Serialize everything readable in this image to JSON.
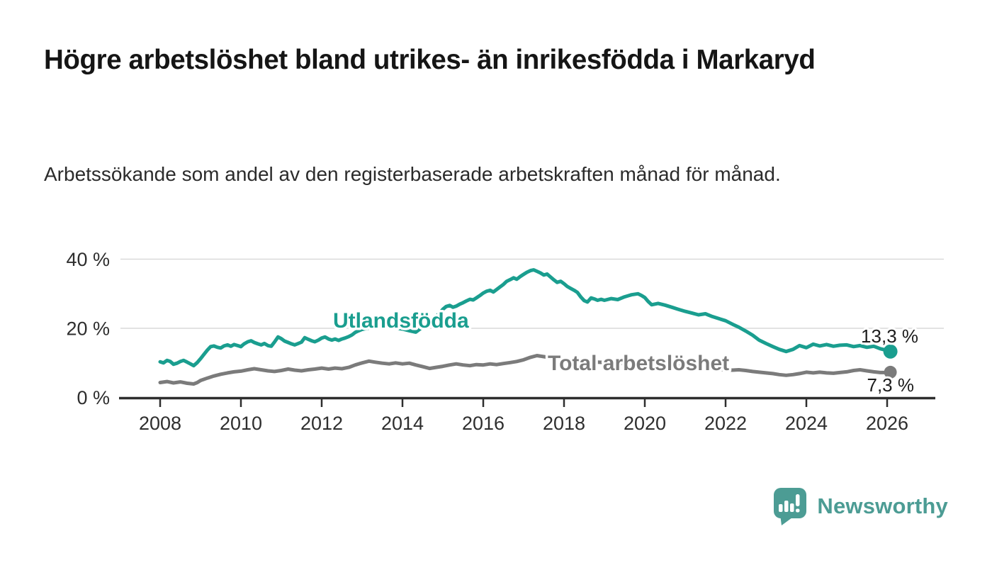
{
  "header": {
    "title": "Högre arbetslöshet bland utrikes- än inrikesfödda i Markaryd",
    "subtitle": "Arbetssökande som andel av den registerbaserade arbetskraften månad för månad."
  },
  "chart_data": {
    "type": "line",
    "title": "Högre arbetslöshet bland utrikes- än inrikesfödda i Markaryd",
    "xlabel": "",
    "ylabel": "",
    "x_unit": "year (monthly data)",
    "xlim": [
      2007.0,
      2026.9
    ],
    "ylim": [
      0,
      40
    ],
    "grid": true,
    "legend_position": "inline-labels",
    "x_axis": {
      "ticks": [
        {
          "value": 2008,
          "label": "2008"
        },
        {
          "value": 2010,
          "label": "2010"
        },
        {
          "value": 2012,
          "label": "2012"
        },
        {
          "value": 2014,
          "label": "2014"
        },
        {
          "value": 2016,
          "label": "2016"
        },
        {
          "value": 2018,
          "label": "2018"
        },
        {
          "value": 2020,
          "label": "2020"
        },
        {
          "value": 2022,
          "label": "2022"
        },
        {
          "value": 2024,
          "label": "2024"
        },
        {
          "value": 2026,
          "label": "2026"
        }
      ]
    },
    "y_axis": {
      "ticks": [
        {
          "value": 0,
          "label": "0 %"
        },
        {
          "value": 20,
          "label": "20 %"
        },
        {
          "value": 40,
          "label": "40 %"
        }
      ]
    },
    "series": [
      {
        "name": "Utlandsfödda",
        "color": "#1a9e8f",
        "end_label": "13,3 %",
        "end_value": 13.3,
        "points": [
          [
            2008.0,
            10.3
          ],
          [
            2008.08,
            10.0
          ],
          [
            2008.17,
            10.7
          ],
          [
            2008.25,
            10.4
          ],
          [
            2008.33,
            9.6
          ],
          [
            2008.42,
            9.9
          ],
          [
            2008.5,
            10.4
          ],
          [
            2008.58,
            10.7
          ],
          [
            2008.67,
            10.2
          ],
          [
            2008.75,
            9.7
          ],
          [
            2008.83,
            9.2
          ],
          [
            2008.92,
            10.1
          ],
          [
            2009.0,
            11.2
          ],
          [
            2009.08,
            12.4
          ],
          [
            2009.17,
            13.7
          ],
          [
            2009.25,
            14.7
          ],
          [
            2009.33,
            14.9
          ],
          [
            2009.42,
            14.5
          ],
          [
            2009.5,
            14.3
          ],
          [
            2009.58,
            14.9
          ],
          [
            2009.67,
            15.2
          ],
          [
            2009.75,
            14.8
          ],
          [
            2009.83,
            15.3
          ],
          [
            2009.92,
            15.0
          ],
          [
            2010.0,
            14.7
          ],
          [
            2010.08,
            15.5
          ],
          [
            2010.17,
            16.1
          ],
          [
            2010.25,
            16.4
          ],
          [
            2010.33,
            15.9
          ],
          [
            2010.42,
            15.5
          ],
          [
            2010.5,
            15.2
          ],
          [
            2010.58,
            15.6
          ],
          [
            2010.67,
            15.0
          ],
          [
            2010.75,
            14.8
          ],
          [
            2010.83,
            16.0
          ],
          [
            2010.92,
            17.5
          ],
          [
            2011.0,
            17.0
          ],
          [
            2011.08,
            16.3
          ],
          [
            2011.17,
            15.9
          ],
          [
            2011.25,
            15.5
          ],
          [
            2011.33,
            15.2
          ],
          [
            2011.42,
            15.6
          ],
          [
            2011.5,
            16.0
          ],
          [
            2011.58,
            17.3
          ],
          [
            2011.67,
            16.8
          ],
          [
            2011.75,
            16.4
          ],
          [
            2011.83,
            16.1
          ],
          [
            2011.92,
            16.6
          ],
          [
            2012.0,
            17.2
          ],
          [
            2012.08,
            17.5
          ],
          [
            2012.17,
            16.9
          ],
          [
            2012.25,
            16.6
          ],
          [
            2012.33,
            16.9
          ],
          [
            2012.42,
            16.5
          ],
          [
            2012.5,
            16.9
          ],
          [
            2012.58,
            17.2
          ],
          [
            2012.67,
            17.6
          ],
          [
            2012.75,
            18.1
          ],
          [
            2012.83,
            18.8
          ],
          [
            2012.92,
            19.3
          ],
          [
            2013.0,
            19.7
          ],
          [
            2013.17,
            20.1
          ],
          [
            2013.33,
            20.5
          ],
          [
            2013.5,
            20.7
          ],
          [
            2013.67,
            20.4
          ],
          [
            2013.83,
            20.1
          ],
          [
            2014.0,
            19.8
          ],
          [
            2014.17,
            19.3
          ],
          [
            2014.33,
            18.9
          ],
          [
            2014.5,
            20.4
          ],
          [
            2014.58,
            21.2
          ],
          [
            2014.67,
            21.9
          ],
          [
            2014.75,
            22.6
          ],
          [
            2014.83,
            23.4
          ],
          [
            2014.92,
            24.4
          ],
          [
            2015.0,
            25.5
          ],
          [
            2015.08,
            26.3
          ],
          [
            2015.17,
            26.6
          ],
          [
            2015.25,
            26.1
          ],
          [
            2015.33,
            26.4
          ],
          [
            2015.42,
            27.0
          ],
          [
            2015.5,
            27.4
          ],
          [
            2015.58,
            27.9
          ],
          [
            2015.67,
            28.4
          ],
          [
            2015.75,
            28.2
          ],
          [
            2015.83,
            28.8
          ],
          [
            2015.92,
            29.5
          ],
          [
            2016.0,
            30.2
          ],
          [
            2016.08,
            30.7
          ],
          [
            2016.17,
            31.0
          ],
          [
            2016.25,
            30.5
          ],
          [
            2016.33,
            31.2
          ],
          [
            2016.42,
            32.0
          ],
          [
            2016.5,
            32.7
          ],
          [
            2016.58,
            33.6
          ],
          [
            2016.67,
            34.1
          ],
          [
            2016.75,
            34.6
          ],
          [
            2016.83,
            34.2
          ],
          [
            2016.92,
            35.0
          ],
          [
            2017.0,
            35.6
          ],
          [
            2017.08,
            36.2
          ],
          [
            2017.17,
            36.7
          ],
          [
            2017.25,
            36.9
          ],
          [
            2017.33,
            36.5
          ],
          [
            2017.42,
            36.0
          ],
          [
            2017.5,
            35.4
          ],
          [
            2017.58,
            35.7
          ],
          [
            2017.67,
            34.8
          ],
          [
            2017.75,
            34.0
          ],
          [
            2017.83,
            33.3
          ],
          [
            2017.92,
            33.6
          ],
          [
            2018.0,
            32.9
          ],
          [
            2018.08,
            32.1
          ],
          [
            2018.17,
            31.5
          ],
          [
            2018.25,
            31.0
          ],
          [
            2018.33,
            30.4
          ],
          [
            2018.42,
            29.0
          ],
          [
            2018.5,
            28.0
          ],
          [
            2018.58,
            27.6
          ],
          [
            2018.67,
            28.8
          ],
          [
            2018.75,
            28.5
          ],
          [
            2018.83,
            28.1
          ],
          [
            2018.92,
            28.4
          ],
          [
            2019.0,
            28.1
          ],
          [
            2019.17,
            28.6
          ],
          [
            2019.33,
            28.3
          ],
          [
            2019.5,
            29.1
          ],
          [
            2019.67,
            29.7
          ],
          [
            2019.83,
            30.0
          ],
          [
            2019.92,
            29.5
          ],
          [
            2020.0,
            28.9
          ],
          [
            2020.08,
            27.8
          ],
          [
            2020.17,
            26.8
          ],
          [
            2020.33,
            27.2
          ],
          [
            2020.5,
            26.7
          ],
          [
            2020.67,
            26.1
          ],
          [
            2020.83,
            25.5
          ],
          [
            2021.0,
            24.9
          ],
          [
            2021.17,
            24.4
          ],
          [
            2021.33,
            23.9
          ],
          [
            2021.5,
            24.2
          ],
          [
            2021.67,
            23.4
          ],
          [
            2021.83,
            22.8
          ],
          [
            2022.0,
            22.2
          ],
          [
            2022.17,
            21.2
          ],
          [
            2022.33,
            20.3
          ],
          [
            2022.5,
            19.2
          ],
          [
            2022.67,
            18.0
          ],
          [
            2022.83,
            16.6
          ],
          [
            2023.0,
            15.6
          ],
          [
            2023.17,
            14.7
          ],
          [
            2023.33,
            13.9
          ],
          [
            2023.5,
            13.3
          ],
          [
            2023.67,
            13.9
          ],
          [
            2023.83,
            15.0
          ],
          [
            2024.0,
            14.4
          ],
          [
            2024.17,
            15.4
          ],
          [
            2024.33,
            14.9
          ],
          [
            2024.5,
            15.3
          ],
          [
            2024.67,
            14.8
          ],
          [
            2024.83,
            15.1
          ],
          [
            2025.0,
            15.2
          ],
          [
            2025.17,
            14.7
          ],
          [
            2025.33,
            15.0
          ],
          [
            2025.5,
            14.5
          ],
          [
            2025.67,
            14.8
          ],
          [
            2025.83,
            14.1
          ],
          [
            2026.0,
            13.6
          ],
          [
            2026.08,
            13.3
          ]
        ]
      },
      {
        "name": "Total arbetslöshet",
        "color": "#7b7b7b",
        "end_label": "7,3 %",
        "end_value": 7.3,
        "points": [
          [
            2008.0,
            4.3
          ],
          [
            2008.17,
            4.6
          ],
          [
            2008.33,
            4.2
          ],
          [
            2008.5,
            4.5
          ],
          [
            2008.67,
            4.1
          ],
          [
            2008.83,
            3.9
          ],
          [
            2008.92,
            4.3
          ],
          [
            2009.0,
            4.9
          ],
          [
            2009.17,
            5.6
          ],
          [
            2009.33,
            6.2
          ],
          [
            2009.5,
            6.7
          ],
          [
            2009.67,
            7.1
          ],
          [
            2009.83,
            7.4
          ],
          [
            2010.0,
            7.6
          ],
          [
            2010.17,
            8.0
          ],
          [
            2010.33,
            8.3
          ],
          [
            2010.5,
            8.0
          ],
          [
            2010.67,
            7.7
          ],
          [
            2010.83,
            7.5
          ],
          [
            2011.0,
            7.8
          ],
          [
            2011.17,
            8.2
          ],
          [
            2011.33,
            7.9
          ],
          [
            2011.5,
            7.7
          ],
          [
            2011.67,
            8.0
          ],
          [
            2011.83,
            8.2
          ],
          [
            2012.0,
            8.5
          ],
          [
            2012.17,
            8.2
          ],
          [
            2012.33,
            8.5
          ],
          [
            2012.5,
            8.3
          ],
          [
            2012.67,
            8.7
          ],
          [
            2012.83,
            9.4
          ],
          [
            2013.0,
            10.0
          ],
          [
            2013.17,
            10.5
          ],
          [
            2013.33,
            10.2
          ],
          [
            2013.5,
            9.9
          ],
          [
            2013.67,
            9.7
          ],
          [
            2013.83,
            10.0
          ],
          [
            2014.0,
            9.7
          ],
          [
            2014.17,
            9.9
          ],
          [
            2014.33,
            9.4
          ],
          [
            2014.5,
            8.9
          ],
          [
            2014.67,
            8.4
          ],
          [
            2014.83,
            8.7
          ],
          [
            2015.0,
            9.0
          ],
          [
            2015.17,
            9.4
          ],
          [
            2015.33,
            9.7
          ],
          [
            2015.5,
            9.4
          ],
          [
            2015.67,
            9.2
          ],
          [
            2015.83,
            9.5
          ],
          [
            2016.0,
            9.4
          ],
          [
            2016.17,
            9.7
          ],
          [
            2016.33,
            9.5
          ],
          [
            2016.5,
            9.8
          ],
          [
            2016.67,
            10.1
          ],
          [
            2016.83,
            10.4
          ],
          [
            2017.0,
            10.9
          ],
          [
            2017.17,
            11.6
          ],
          [
            2017.33,
            12.1
          ],
          [
            2017.5,
            11.8
          ],
          [
            2017.67,
            11.5
          ],
          [
            2017.83,
            11.2
          ],
          [
            2018.0,
            11.0
          ],
          [
            2018.33,
            10.6
          ],
          [
            2018.67,
            10.3
          ],
          [
            2019.0,
            10.1
          ],
          [
            2019.33,
            9.9
          ],
          [
            2019.67,
            9.7
          ],
          [
            2020.0,
            9.6
          ],
          [
            2020.33,
            9.8
          ],
          [
            2020.67,
            9.4
          ],
          [
            2021.0,
            9.0
          ],
          [
            2021.33,
            8.6
          ],
          [
            2021.67,
            8.3
          ],
          [
            2022.0,
            8.0
          ],
          [
            2022.17,
            7.9
          ],
          [
            2022.33,
            8.0
          ],
          [
            2022.5,
            7.8
          ],
          [
            2022.67,
            7.5
          ],
          [
            2022.83,
            7.3
          ],
          [
            2023.0,
            7.1
          ],
          [
            2023.17,
            6.9
          ],
          [
            2023.33,
            6.6
          ],
          [
            2023.5,
            6.4
          ],
          [
            2023.67,
            6.6
          ],
          [
            2023.83,
            6.9
          ],
          [
            2024.0,
            7.3
          ],
          [
            2024.17,
            7.1
          ],
          [
            2024.33,
            7.3
          ],
          [
            2024.5,
            7.1
          ],
          [
            2024.67,
            7.0
          ],
          [
            2024.83,
            7.2
          ],
          [
            2025.0,
            7.4
          ],
          [
            2025.17,
            7.8
          ],
          [
            2025.33,
            8.0
          ],
          [
            2025.5,
            7.7
          ],
          [
            2025.67,
            7.4
          ],
          [
            2025.83,
            7.2
          ],
          [
            2026.0,
            7.2
          ],
          [
            2026.08,
            7.3
          ]
        ]
      }
    ]
  },
  "footer": {
    "brand": "Newsworthy",
    "brand_color": "#4c9c94"
  }
}
